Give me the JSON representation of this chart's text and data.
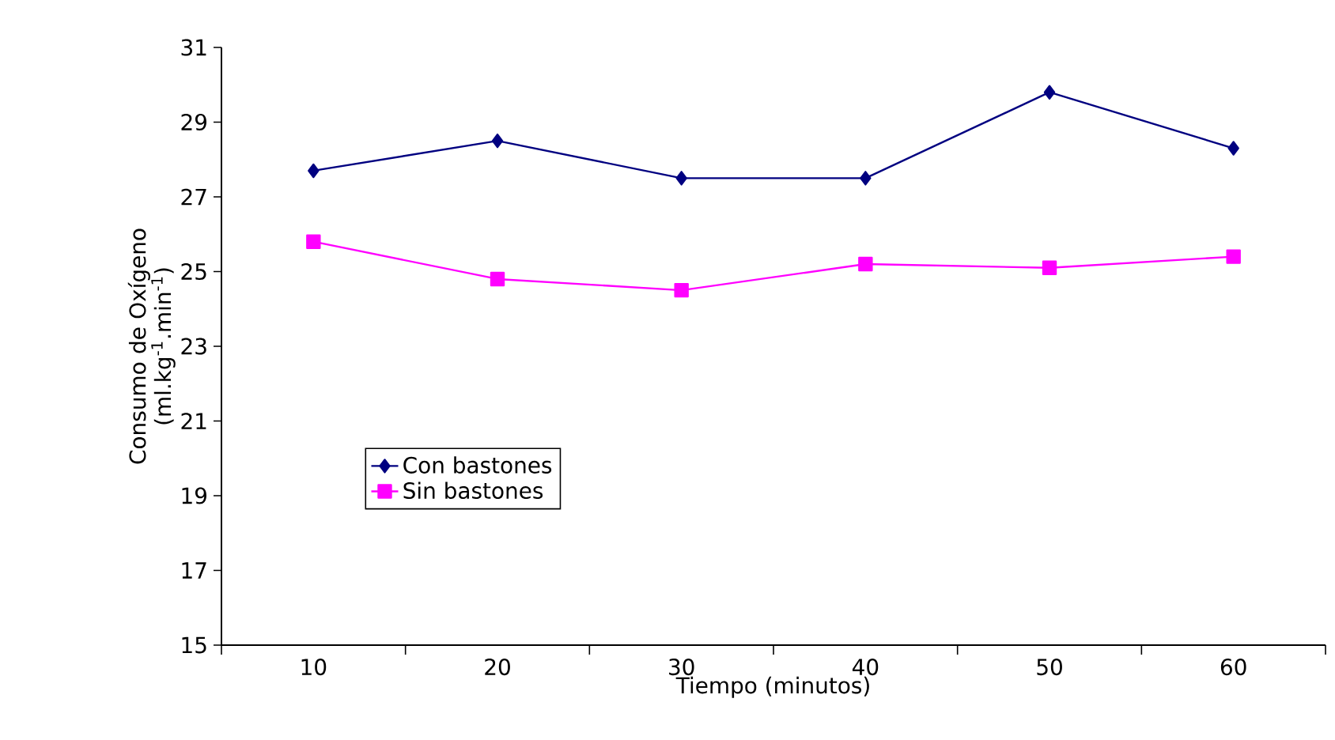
{
  "chart_data": {
    "type": "line",
    "xlabel": "Tiempo (minutos)",
    "ylabel": "Consumo de Oxígeno (ml.kg$^{-1}$.min$^{-1}$)",
    "categories": [
      "10",
      "20",
      "30",
      "40",
      "50",
      "60"
    ],
    "series": [
      {
        "name": "Con bastones",
        "color": "#000080",
        "marker": "diamond",
        "values": [
          27.7,
          28.5,
          27.5,
          27.5,
          29.8,
          28.3
        ]
      },
      {
        "name": "Sin bastones",
        "color": "#ff00ff",
        "marker": "square",
        "values": [
          25.8,
          24.8,
          24.5,
          25.2,
          25.1,
          25.4
        ]
      }
    ],
    "ylim": [
      15,
      31
    ],
    "yticks": [
      15,
      17,
      19,
      21,
      23,
      25,
      27,
      29,
      31
    ],
    "grid": false,
    "legend": "bottom left",
    "line_style": "solid"
  }
}
